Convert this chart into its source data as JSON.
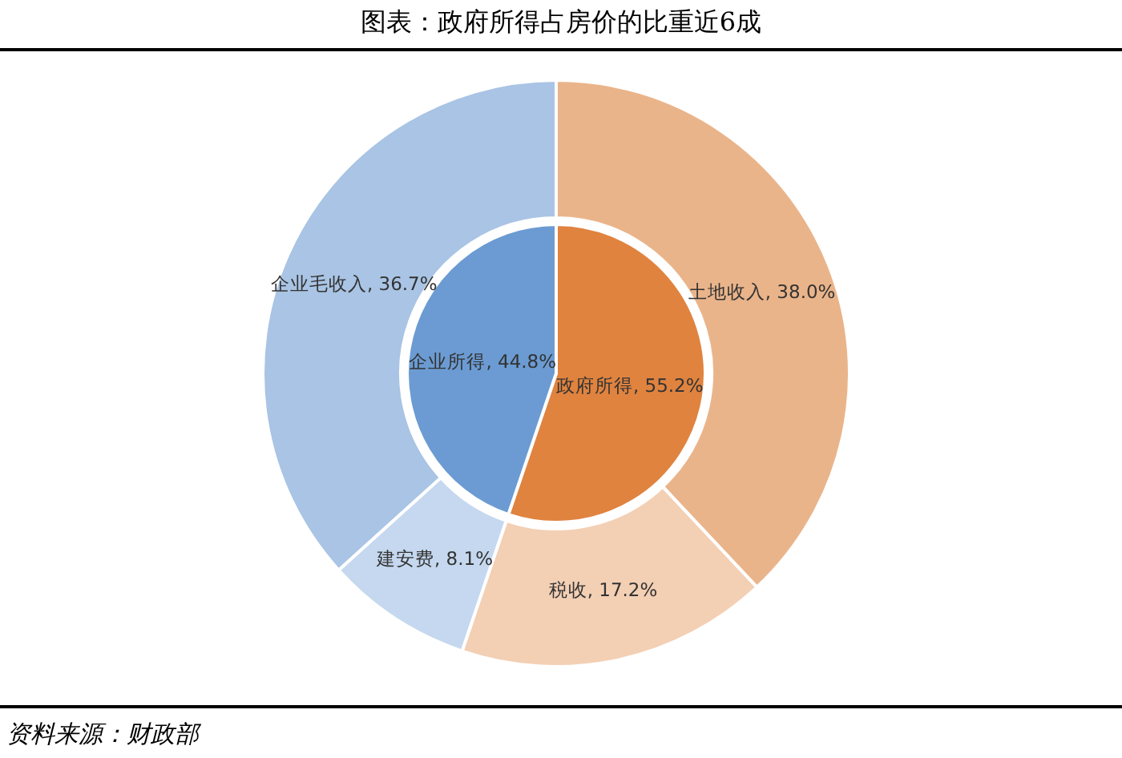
{
  "chart_data": [
    {
      "type": "pie",
      "title": "图表：政府所得占房价的比重近6成",
      "categories": [
        "政府所得",
        "企业所得"
      ],
      "values": [
        55.2,
        44.8
      ],
      "value_labels": [
        "55.2%",
        "44.8%"
      ],
      "colors": [
        "#e0833f",
        "#6b9bd2"
      ]
    },
    {
      "type": "donut",
      "categories": [
        "土地收入",
        "税收",
        "建安费",
        "企业毛收入"
      ],
      "values": [
        38.0,
        17.2,
        8.1,
        36.7
      ],
      "value_labels": [
        "38.0%",
        "17.2%",
        "8.1%",
        "36.7%"
      ],
      "colors": [
        "#eab48a",
        "#f3cfb4",
        "#c5d8ef",
        "#a9c4e4"
      ],
      "annotations": [
        "资料来源：财政部"
      ]
    }
  ]
}
